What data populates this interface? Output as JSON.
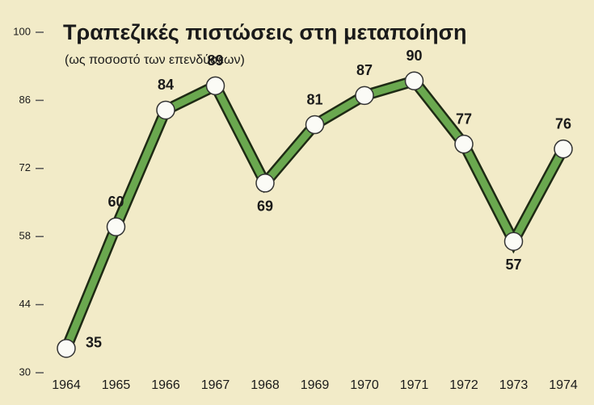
{
  "chart_data": {
    "type": "line",
    "title": "Τραπεζικές πιστώσεις στη μεταποίηση",
    "subtitle": "(ως ποσοστό των επενδύσεων)",
    "categories": [
      "1964",
      "1965",
      "1966",
      "1967",
      "1968",
      "1969",
      "1970",
      "1971",
      "1972",
      "1973",
      "1974"
    ],
    "values": [
      35,
      60,
      84,
      89,
      69,
      81,
      87,
      90,
      77,
      57,
      76
    ],
    "color": "#6aa84f",
    "ylim": [
      30,
      100
    ],
    "yticks": [
      30,
      44,
      58,
      72,
      86,
      100
    ]
  }
}
